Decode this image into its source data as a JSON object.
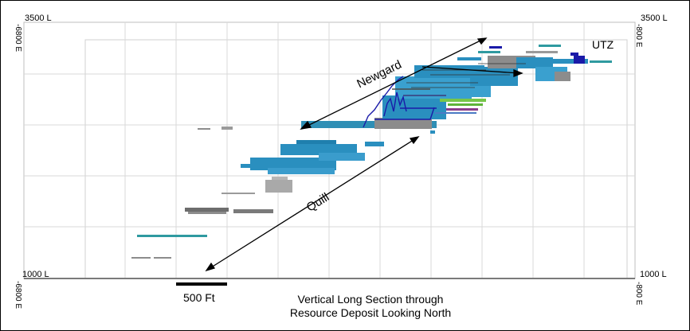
{
  "corner_labels": {
    "top_left_elev": "3500 L",
    "top_right_elev": "3500 L",
    "bottom_left_elev": "1000 L",
    "bottom_right_elev": "1000 L",
    "left_top_easting": "-6800 E",
    "left_bottom_easting": "-6800 E",
    "right_top_easting": "-800 E",
    "right_bottom_easting": "-800 E"
  },
  "annotations": {
    "newgard": "Newgard",
    "quill": "Quill",
    "utz": "UTZ"
  },
  "scale_bar": {
    "label": "500 Ft"
  },
  "caption": {
    "line1": "Vertical Long Section through",
    "line2": "Resource Deposit Looking North"
  },
  "colors": {
    "deposit_blue": "#2a8fbf",
    "deposit_grey": "#8c8c8c",
    "drill_trace": "#1a1aa8",
    "highlight_green": "#77c64a",
    "grid": "#d9d9d9"
  }
}
